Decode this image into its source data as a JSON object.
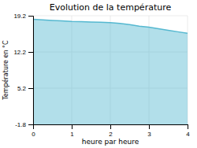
{
  "chart_data": {
    "type": "area",
    "title": "Evolution de la température",
    "xlabel": "heure par heure",
    "ylabel": "Température en °C",
    "color": "#55b8d0",
    "x": [
      0,
      0.25,
      0.5,
      0.75,
      1.0,
      1.25,
      1.5,
      1.75,
      2.0,
      2.25,
      2.5,
      2.75,
      3.0,
      3.25,
      3.5,
      3.75,
      4.0
    ],
    "values": [
      18.5,
      18.4,
      18.3,
      18.2,
      18.1,
      18.05,
      18.0,
      17.95,
      17.85,
      17.7,
      17.5,
      17.2,
      17.0,
      16.7,
      16.4,
      16.1,
      15.8
    ],
    "xlim": [
      0,
      4
    ],
    "ylim": [
      -1.8,
      19.2
    ],
    "xticks": [
      0,
      1,
      2,
      3,
      4
    ],
    "yticks": [
      -1.8,
      5.2,
      12.2,
      19.2
    ],
    "grid": true
  }
}
